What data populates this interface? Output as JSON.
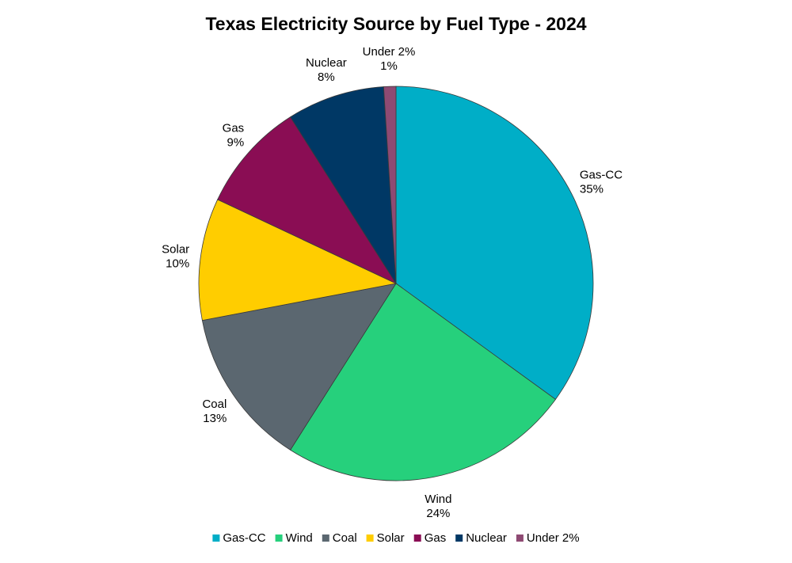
{
  "chart_data": {
    "type": "pie",
    "title": "Texas Electricity Source by Fuel Type - 2024",
    "slices": [
      {
        "label": "Gas-CC",
        "value": 35,
        "value_label": "35%",
        "color": "#00AEC7"
      },
      {
        "label": "Wind",
        "value": 24,
        "value_label": "24%",
        "color": "#26D07C"
      },
      {
        "label": "Coal",
        "value": 13,
        "value_label": "13%",
        "color": "#5B6770"
      },
      {
        "label": "Solar",
        "value": 10,
        "value_label": "10%",
        "color": "#FFCD00"
      },
      {
        "label": "Gas",
        "value": 9,
        "value_label": "9%",
        "color": "#8A0D54"
      },
      {
        "label": "Nuclear",
        "value": 8,
        "value_label": "8%",
        "color": "#003865"
      },
      {
        "label": "Under 2%",
        "value": 1,
        "value_label": "1%",
        "color": "#8E4A73"
      }
    ],
    "legend_position": "bottom"
  }
}
